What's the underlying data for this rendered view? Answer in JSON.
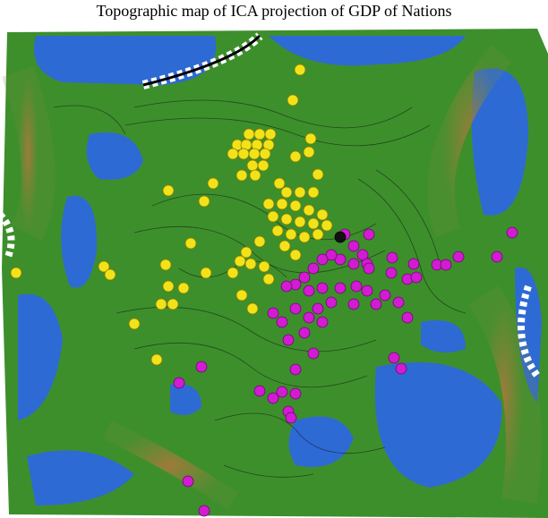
{
  "header": {
    "title": "Topographic map of ICA projection of GDP of Nations"
  }
}
